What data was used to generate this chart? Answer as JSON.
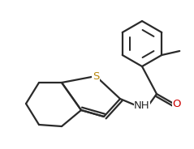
{
  "background": "#ffffff",
  "bond_color": "#2a2a2a",
  "bond_lw": 1.6,
  "figsize": [
    2.39,
    1.84
  ],
  "dpi": 100,
  "S_label": {
    "text": "S",
    "color": "#b8860b",
    "fontsize": 9.5
  },
  "NH_label": {
    "text": "NH",
    "color": "#2a2a2a",
    "fontsize": 9.5
  },
  "O_label": {
    "text": "O",
    "color": "#cc0000",
    "fontsize": 9.5
  }
}
